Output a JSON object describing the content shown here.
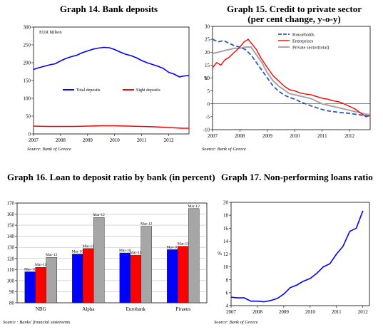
{
  "colors": {
    "blue": "#0000ff",
    "red": "#ff0000",
    "grey": "#a6a6a6",
    "dashblue": "#3355cc",
    "gridgrey": "#bfbfbf"
  },
  "chart_data": [
    {
      "type": "line",
      "title": "Graph 14. Bank deposits",
      "annotation": "EUR billion",
      "source": "Source: Bank of Greece",
      "ylim": [
        0,
        300
      ],
      "yticks": [
        "0",
        "50",
        "100",
        "150",
        "200",
        "250",
        "300"
      ],
      "xticks": [
        "2007",
        "2008",
        "2009",
        "2010",
        "2011",
        "2012"
      ],
      "xlim": [
        2007,
        2012.75
      ],
      "legend": "middle",
      "series": [
        {
          "name": "Total deposits",
          "color": "blue",
          "x": [
            2007.0,
            2007.2,
            2007.4,
            2007.6,
            2007.8,
            2008.0,
            2008.2,
            2008.4,
            2008.6,
            2008.8,
            2009.0,
            2009.2,
            2009.4,
            2009.6,
            2009.8,
            2010.0,
            2010.2,
            2010.4,
            2010.6,
            2010.8,
            2011.0,
            2011.2,
            2011.4,
            2011.6,
            2011.8,
            2012.0,
            2012.2,
            2012.4,
            2012.5,
            2012.6,
            2012.75
          ],
          "values": [
            181,
            186,
            190,
            194,
            197,
            205,
            212,
            217,
            221,
            228,
            233,
            238,
            241,
            243,
            242,
            237,
            230,
            224,
            220,
            214,
            206,
            200,
            195,
            190,
            184,
            173,
            168,
            160,
            162,
            163,
            164
          ]
        },
        {
          "name": "Sight deposits",
          "color": "red",
          "x": [
            2007.0,
            2007.5,
            2008.0,
            2008.5,
            2009.0,
            2009.5,
            2010.0,
            2010.5,
            2011.0,
            2011.5,
            2012.0,
            2012.5,
            2012.75
          ],
          "values": [
            22,
            21,
            21,
            21,
            22,
            23,
            23,
            22,
            21,
            20,
            18,
            16,
            16
          ]
        }
      ]
    },
    {
      "type": "line",
      "title": "Graph 15. Credit to private sector",
      "subtitle": "(per cent change, y-o-y)",
      "ylabel": "%",
      "source": "Source: Bank of Greece",
      "ylim": [
        -10,
        30
      ],
      "yticks": [
        "-10",
        "-5",
        "0",
        "5",
        "10",
        "15",
        "20",
        "25",
        "30"
      ],
      "xticks": [
        "2007",
        "2008",
        "2009",
        "2010",
        "2011",
        "2012"
      ],
      "xlim": [
        2007,
        2012.75
      ],
      "legend": "top-right",
      "series": [
        {
          "name": "Households",
          "color": "dashblue",
          "x": [
            2007.0,
            2007.2,
            2007.4,
            2007.6,
            2007.8,
            2008.0,
            2008.2,
            2008.4,
            2008.6,
            2008.8,
            2009.0,
            2009.2,
            2009.4,
            2009.6,
            2009.8,
            2010.0,
            2010.2,
            2010.4,
            2010.6,
            2010.8,
            2011.0,
            2011.2,
            2011.4,
            2011.6,
            2011.8,
            2012.0,
            2012.2,
            2012.4,
            2012.6,
            2012.75
          ],
          "values": [
            25,
            24,
            24.5,
            23.5,
            22.5,
            22,
            21,
            19,
            16,
            13,
            10,
            7,
            5,
            3.5,
            2.5,
            1.8,
            0.8,
            0,
            -0.8,
            -1.5,
            -2.2,
            -2.7,
            -3,
            -3.3,
            -3.5,
            -3.7,
            -4,
            -4.3,
            -4.6,
            -4.8
          ]
        },
        {
          "name": "Enterprises",
          "color": "red",
          "x": [
            2007.0,
            2007.15,
            2007.3,
            2007.45,
            2007.6,
            2007.8,
            2008.0,
            2008.15,
            2008.3,
            2008.45,
            2008.6,
            2008.75,
            2009.0,
            2009.2,
            2009.4,
            2009.6,
            2009.8,
            2010.0,
            2010.2,
            2010.4,
            2010.6,
            2010.8,
            2011.0,
            2011.2,
            2011.4,
            2011.6,
            2011.8,
            2012.0,
            2012.2,
            2012.4,
            2012.6,
            2012.75
          ],
          "values": [
            14,
            16,
            15,
            17,
            18,
            20,
            22,
            24,
            25,
            23,
            21,
            18,
            14,
            11,
            9,
            7,
            5.5,
            5,
            4.2,
            3.8,
            3.5,
            2.8,
            2.2,
            1.8,
            1.2,
            0.8,
            0,
            -1,
            -2,
            -3.5,
            -5,
            -4.5
          ]
        },
        {
          "name": "Private sector(total)",
          "color": "grey",
          "x": [
            2007.0,
            2007.2,
            2007.4,
            2007.6,
            2007.8,
            2008.0,
            2008.2,
            2008.4,
            2008.6,
            2008.8,
            2009.0,
            2009.2,
            2009.4,
            2009.6,
            2009.8,
            2010.0,
            2010.2,
            2010.4,
            2010.6,
            2010.8,
            2011.0,
            2011.2,
            2011.4,
            2011.6,
            2011.8,
            2012.0,
            2012.2,
            2012.4,
            2012.6,
            2012.75
          ],
          "values": [
            19.5,
            20,
            20.5,
            21,
            21.5,
            21.5,
            22,
            22,
            19,
            16,
            12,
            9,
            7,
            5.5,
            4,
            3.5,
            3,
            2.5,
            2,
            1,
            0,
            -0.5,
            -1,
            -1.5,
            -2,
            -2.5,
            -3,
            -3.5,
            -4,
            -4.2
          ]
        }
      ]
    },
    {
      "type": "bar",
      "title": "Graph 16. Loan to deposit ratio by bank (in percent)",
      "source": "Source : Banks' financial statements",
      "ylim": [
        80,
        170
      ],
      "yticks": [
        "80",
        "90",
        "100",
        "110",
        "120",
        "130",
        "140",
        "150",
        "160",
        "170"
      ],
      "categories": [
        "NBG",
        "Alpha",
        "Eurobank",
        "Piraeus"
      ],
      "series": [
        {
          "name": "Mar-10",
          "color": "blue",
          "values": [
            108,
            124,
            125,
            128
          ]
        },
        {
          "name": "Mar-11",
          "color": "red",
          "values": [
            112,
            129,
            123,
            131
          ]
        },
        {
          "name": "Mar-12",
          "color": "grey",
          "values": [
            121,
            157,
            149,
            165
          ]
        }
      ]
    },
    {
      "type": "line",
      "title": "Graph 17. Non-performing loans ratio",
      "ylabel": "%",
      "source": "Source: Bank of Greece",
      "ylim": [
        4,
        20
      ],
      "yticks": [
        "4",
        "6",
        "8",
        "10",
        "12",
        "14",
        "16",
        "18",
        "20"
      ],
      "xticks": [
        "2007",
        "2008",
        "2009",
        "2010",
        "2011",
        "2012"
      ],
      "xlim": [
        2007,
        2012.25
      ],
      "series": [
        {
          "name": "",
          "color": "blue",
          "x": [
            2007.0,
            2007.25,
            2007.5,
            2007.75,
            2008.0,
            2008.25,
            2008.5,
            2008.75,
            2009.0,
            2009.25,
            2009.5,
            2009.75,
            2010.0,
            2010.25,
            2010.5,
            2010.75,
            2011.0,
            2011.25,
            2011.5,
            2011.75,
            2012.0,
            2012.25
          ],
          "values": [
            5.3,
            5.2,
            5.2,
            4.7,
            4.7,
            4.6,
            4.8,
            5.1,
            5.8,
            6.8,
            7.2,
            7.8,
            8.2,
            9.0,
            10.0,
            10.5,
            12.0,
            13.2,
            15.5,
            16.0,
            18.7,
            null
          ]
        }
      ]
    }
  ]
}
